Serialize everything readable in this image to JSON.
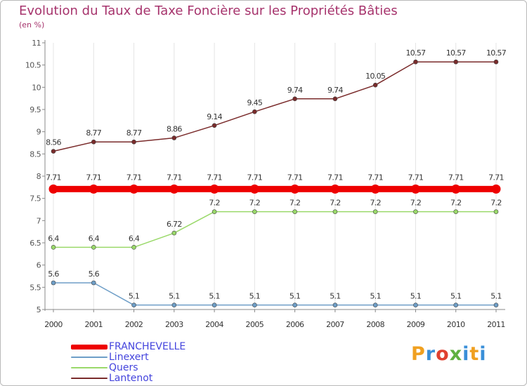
{
  "chart_data": {
    "type": "line",
    "title": "Evolution du Taux de Taxe Foncière sur les Propriétés Bâties",
    "subtitle": "(en %)",
    "x": [
      "2000",
      "2001",
      "2002",
      "2003",
      "2004",
      "2005",
      "2006",
      "2007",
      "2008",
      "2009",
      "2010",
      "2011"
    ],
    "ylim": [
      5,
      11
    ],
    "yticks": [
      "5",
      "5.5",
      "6",
      "6.5",
      "7",
      "7.5",
      "8",
      "8.5",
      "9",
      "9.5",
      "10",
      "10.5",
      "11"
    ],
    "ytick_values": [
      5,
      5.5,
      6,
      6.5,
      7,
      7.5,
      8,
      8.5,
      9,
      9.5,
      10,
      10.5,
      11
    ],
    "legend_position": "bottom-left",
    "series": [
      {
        "name": "FRANCHEVELLE",
        "color": "#ee0000",
        "label_color": "#4444dd",
        "values": [
          7.71,
          7.71,
          7.71,
          7.71,
          7.71,
          7.71,
          7.71,
          7.71,
          7.71,
          7.71,
          7.71,
          7.71
        ],
        "labels": [
          "7.71",
          "7.71",
          "7.71",
          "7.71",
          "7.71",
          "7.71",
          "7.71",
          "7.71",
          "7.71",
          "7.71",
          "7.71",
          "7.71"
        ]
      },
      {
        "name": "Linexert",
        "color": "#6e9ec7",
        "label_color": "#4444dd",
        "values": [
          5.6,
          5.6,
          5.1,
          5.1,
          5.1,
          5.1,
          5.1,
          5.1,
          5.1,
          5.1,
          5.1,
          5.1
        ],
        "labels": [
          "5.6",
          "5.6",
          "5.1",
          "5.1",
          "5.1",
          "5.1",
          "5.1",
          "5.1",
          "5.1",
          "5.1",
          "5.1",
          "5.1"
        ]
      },
      {
        "name": "Quers",
        "color": "#9ad96a",
        "label_color": "#4444dd",
        "values": [
          6.4,
          6.4,
          6.4,
          6.72,
          7.2,
          7.2,
          7.2,
          7.2,
          7.2,
          7.2,
          7.2,
          7.2
        ],
        "labels": [
          "6.4",
          "6.4",
          "6.4",
          "6.72",
          "7.2",
          "7.2",
          "7.2",
          "7.2",
          "7.2",
          "7.2",
          "7.2",
          "7.2"
        ]
      },
      {
        "name": "Lantenot",
        "color": "#7a2b2b",
        "label_color": "#4444dd",
        "values": [
          8.56,
          8.77,
          8.77,
          8.86,
          9.14,
          9.45,
          9.74,
          9.74,
          10.05,
          10.57,
          10.57,
          10.57
        ],
        "labels": [
          "8.56",
          "8.77",
          "8.77",
          "8.86",
          "9.14",
          "9.45",
          "9.74",
          "9.74",
          "10.05",
          "10.57",
          "10.57",
          "10.57"
        ]
      }
    ]
  },
  "logo": {
    "letters": [
      "P",
      "r",
      "o",
      "x",
      "i",
      "t",
      "i"
    ],
    "colors": [
      "#f0a020",
      "#3a8fd8",
      "#e04030",
      "#60b040",
      "#3a8fd8",
      "#f0a020",
      "#3a8fd8"
    ]
  }
}
